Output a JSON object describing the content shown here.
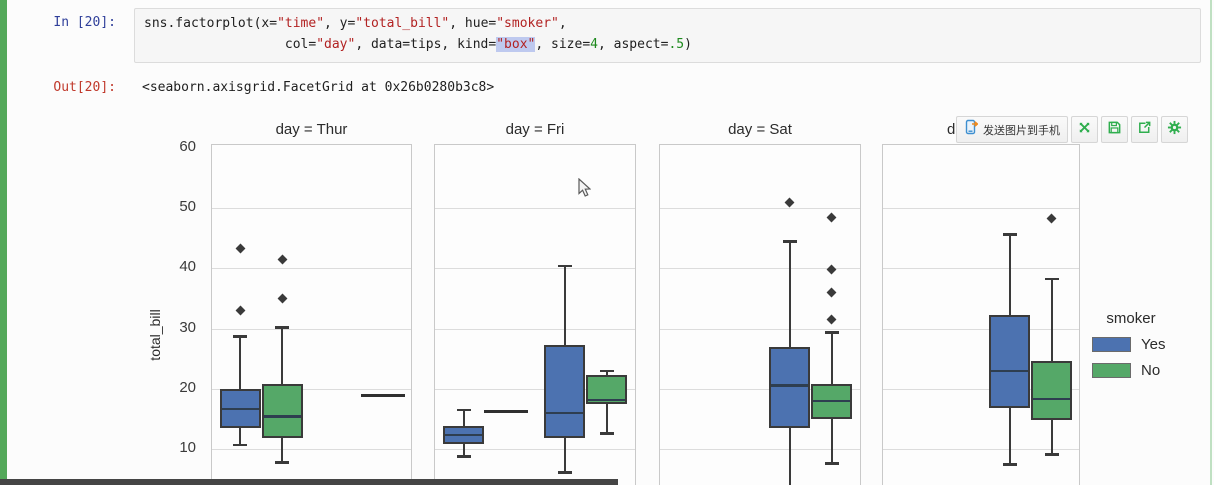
{
  "notebook": {
    "in_prompt": "In [20]:",
    "out_prompt": "Out[20]:",
    "code": {
      "lines": [
        [
          {
            "t": "sns.factorplot(x=",
            "c": "k"
          },
          {
            "t": "\"time\"",
            "c": "s"
          },
          {
            "t": ", y=",
            "c": "k"
          },
          {
            "t": "\"total_bill\"",
            "c": "s"
          },
          {
            "t": ", hue=",
            "c": "k"
          },
          {
            "t": "\"smoker\"",
            "c": "s"
          },
          {
            "t": ",",
            "c": "k"
          }
        ],
        [
          {
            "t": "                  col=",
            "c": "k"
          },
          {
            "t": "\"day\"",
            "c": "s"
          },
          {
            "t": ", data=tips, kind=",
            "c": "k"
          },
          {
            "t": "\"box\"",
            "c": "s hl"
          },
          {
            "t": ", size=",
            "c": "k"
          },
          {
            "t": "4",
            "c": "n"
          },
          {
            "t": ", aspect=",
            "c": "k"
          },
          {
            "t": ".5",
            "c": "n"
          },
          {
            "t": ")",
            "c": "k"
          }
        ]
      ]
    },
    "output_text": "<seaborn.axisgrid.FacetGrid at 0x26b0280b3c8>"
  },
  "toolbar": {
    "send_label": "发送图片到手机",
    "icons": [
      "phone-send",
      "cross-arrows",
      "save",
      "export",
      "settings"
    ],
    "icon_color": "#2fae4e"
  },
  "chart_data": {
    "type": "box",
    "ylabel": "total_bill",
    "y_ticks": [
      10,
      20,
      30,
      40,
      50,
      60
    ],
    "ylim_visible_top": 60.5,
    "grid": true,
    "hue_title": "smoker",
    "colors": {
      "Yes": "#4c72b0",
      "No": "#55a868"
    },
    "legend": {
      "title": "smoker",
      "position": "right",
      "entries": [
        {
          "label": "Yes",
          "color": "#4c72b0"
        },
        {
          "label": "No",
          "color": "#55a868"
        }
      ]
    },
    "facets": [
      {
        "title": "day = Thur",
        "boxes": [
          {
            "hue": "Yes",
            "group": 0,
            "lo": 10.5,
            "q1": 13.4,
            "med": 16.5,
            "q3": 19.8,
            "hi": 28.5,
            "fliers": [
              32.8,
              43.1
            ]
          },
          {
            "hue": "No",
            "group": 0,
            "lo": 7.6,
            "q1": 11.7,
            "med": 15.2,
            "q3": 20.7,
            "hi": 30.0,
            "fliers": [
              34.8,
              41.3
            ]
          },
          {
            "hue": "No",
            "group": 1,
            "single": 18.8
          }
        ]
      },
      {
        "title": "day = Fri",
        "boxes": [
          {
            "hue": "Yes",
            "group": 0,
            "lo": 8.6,
            "q1": 10.7,
            "med": 12.2,
            "q3": 13.6,
            "hi": 16.3,
            "fliers": []
          },
          {
            "hue": "No",
            "group": 0,
            "single": 16.0
          },
          {
            "hue": "Yes",
            "group": 1,
            "lo": 5.9,
            "q1": 11.6,
            "med": 15.8,
            "q3": 27.1,
            "hi": 40.2,
            "fliers": []
          },
          {
            "hue": "No",
            "group": 1,
            "lo": 12.4,
            "q1": 17.3,
            "med": 18.0,
            "q3": 22.2,
            "hi": 22.8,
            "fliers": []
          }
        ]
      },
      {
        "title": "day = Sat",
        "boxes": [
          {
            "hue": "Yes",
            "group": 1,
            "lo": 3.1,
            "q1": 13.3,
            "med": 20.4,
            "q3": 26.7,
            "hi": 44.3,
            "fliers": [
              50.8
            ]
          },
          {
            "hue": "No",
            "group": 1,
            "lo": 7.4,
            "q1": 14.8,
            "med": 17.8,
            "q3": 20.6,
            "hi": 29.2,
            "fliers": [
              31.3,
              35.9,
              39.7,
              48.3
            ]
          }
        ]
      },
      {
        "title": "day = Sun",
        "boxes": [
          {
            "hue": "Yes",
            "group": 1,
            "lo": 7.3,
            "q1": 16.6,
            "med": 22.8,
            "q3": 32.1,
            "hi": 45.5,
            "fliers": []
          },
          {
            "hue": "No",
            "group": 1,
            "lo": 8.9,
            "q1": 14.7,
            "med": 18.1,
            "q3": 24.5,
            "hi": 38.1,
            "fliers": [
              48.2
            ]
          }
        ]
      }
    ]
  }
}
